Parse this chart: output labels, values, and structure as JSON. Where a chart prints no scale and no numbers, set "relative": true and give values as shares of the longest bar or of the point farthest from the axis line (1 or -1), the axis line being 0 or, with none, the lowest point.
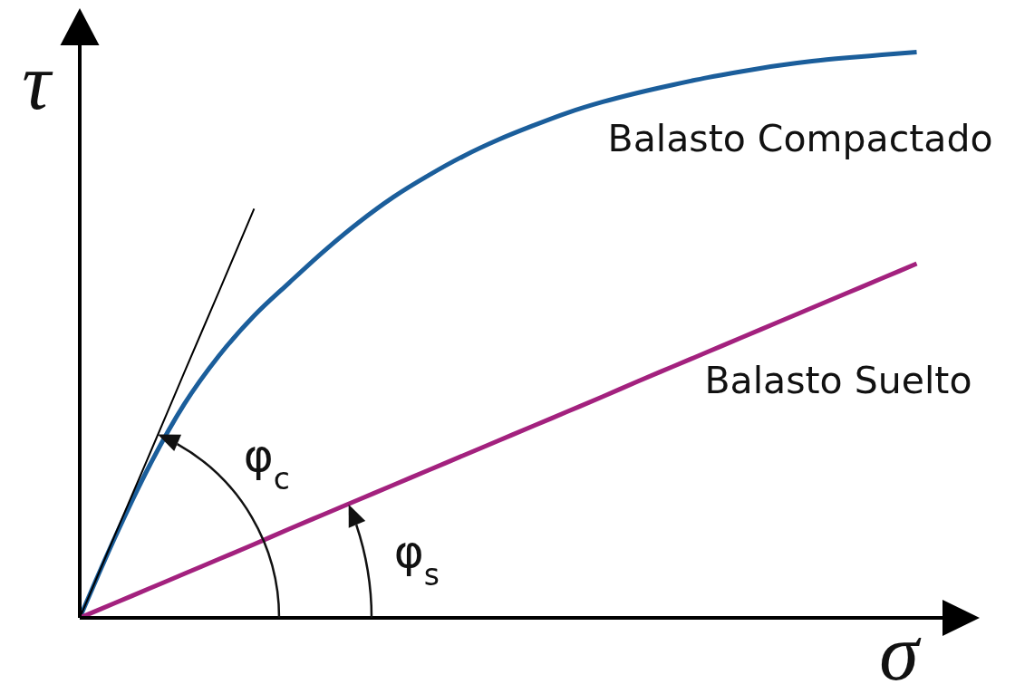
{
  "chart_data": {
    "type": "line",
    "xlabel": "σ",
    "ylabel": "τ",
    "relative": true,
    "categories": [
      null,
      null,
      null,
      null,
      null,
      null,
      null,
      null,
      null,
      null,
      null,
      null,
      null,
      null,
      null,
      null,
      null,
      null,
      null,
      null,
      null,
      null,
      null,
      null,
      null
    ],
    "series": [
      {
        "name": "Balasto Compactado",
        "color": "#1b5e9b",
        "values": [
          0,
          0.141,
          0.269,
          0.378,
          0.464,
          0.534,
          0.592,
          0.648,
          0.699,
          0.744,
          0.782,
          0.816,
          0.845,
          0.87,
          0.893,
          0.912,
          0.928,
          0.942,
          0.955,
          0.966,
          0.976,
          0.984,
          0.99,
          0.995,
          1
        ]
      },
      {
        "color": "#000000",
        "values": [
          0,
          0.145,
          0.289,
          0.434,
          0.578,
          0.723,
          null,
          null,
          null,
          null,
          null,
          null,
          null,
          null,
          null,
          null,
          null,
          null,
          null,
          null,
          null,
          null,
          null,
          null,
          null
        ]
      },
      {
        "name": "Balasto Suelto",
        "color": "#a3217e",
        "values": [
          0,
          0.026,
          0.052,
          0.078,
          0.104,
          0.13,
          0.157,
          0.183,
          0.209,
          0.235,
          0.261,
          0.287,
          0.313,
          0.339,
          0.365,
          0.391,
          0.418,
          0.444,
          0.47,
          0.496,
          0.522,
          0.548,
          0.574,
          0.6,
          0.626
        ]
      }
    ],
    "annotations": [
      "φ$_{c}$",
      "φ$_{s}$"
    ]
  }
}
